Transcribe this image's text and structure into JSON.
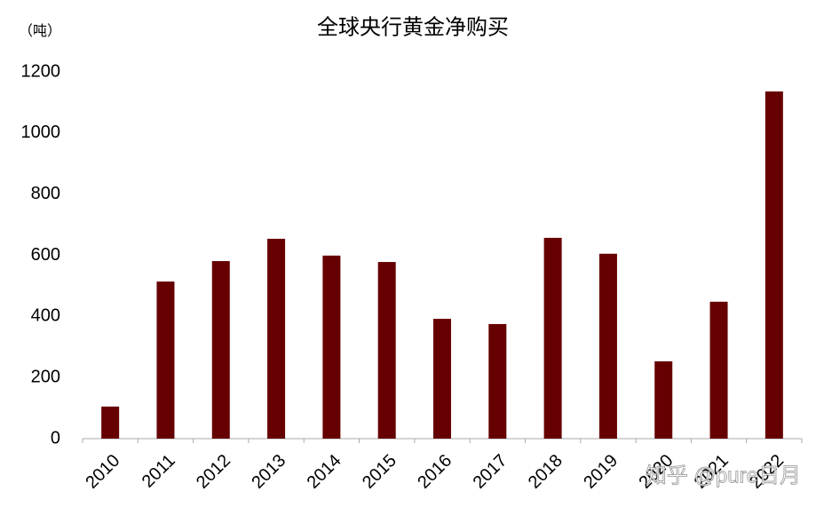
{
  "chart_data": {
    "type": "bar",
    "title": "全球央行黄金净购买",
    "unit_label": "（吨）",
    "categories": [
      "2010",
      "2011",
      "2012",
      "2013",
      "2014",
      "2015",
      "2016",
      "2017",
      "2018",
      "2019",
      "2020",
      "2021",
      "2022"
    ],
    "values": [
      105,
      514,
      581,
      654,
      599,
      578,
      392,
      375,
      657,
      605,
      253,
      448,
      1136
    ],
    "color": "#660000",
    "ylim": [
      0,
      1200
    ],
    "yticks": [
      0,
      200,
      400,
      600,
      800,
      1000,
      1200
    ],
    "grid": false,
    "watermark": "知乎 @pure日月"
  }
}
